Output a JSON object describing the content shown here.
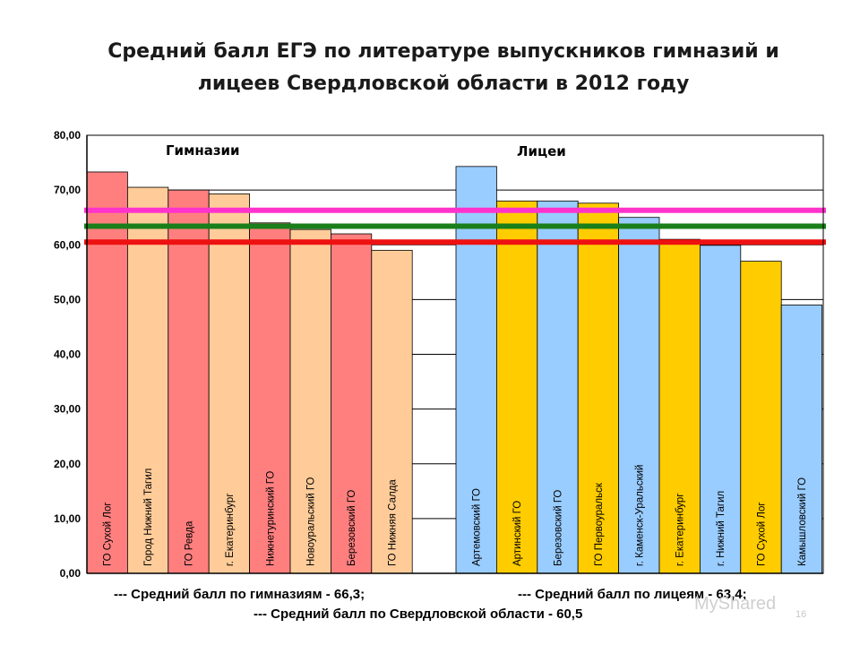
{
  "title": {
    "line1": "Средний балл  ЕГЭ по литературе выпускников гимназий и",
    "line2": "лицеев Свердловской области в 2012 году"
  },
  "chart_data": {
    "type": "bar",
    "title": "Средний балл  ЕГЭ по литературе выпускников гимназий и лицеев Свердловской области в 2012 году",
    "ylim": [
      0,
      80
    ],
    "yticks": [
      "0,00",
      "10,00",
      "20,00",
      "30,00",
      "40,00",
      "50,00",
      "60,00",
      "70,00",
      "80,00"
    ],
    "grid": true,
    "groups": [
      {
        "name": "Гимназии",
        "categories": [
          "ГО Сухой Лог",
          "Город Нижний Тагил",
          "ГО Ревда",
          "г. Екатеринбург",
          "Нижнетуринский  ГО",
          "Новоуральский ГО",
          "Березовский  ГО",
          "ГО Нижняя Салда"
        ],
        "values": [
          73.3,
          70.5,
          70.0,
          69.3,
          64.0,
          62.8,
          62.0,
          59.0
        ],
        "colors": [
          "#ff7f7f",
          "#ffcc99",
          "#ff7f7f",
          "#ffcc99",
          "#ff7f7f",
          "#ffcc99",
          "#ff7f7f",
          "#ffcc99"
        ]
      },
      {
        "name": "Лицеи",
        "categories": [
          "Артемовский  ГО",
          "Артинский  ГО",
          "Березовский  ГО",
          "ГО Первоуральск",
          "г. Каменск-Уральский",
          "г. Екатеринбург",
          "г. Нижний  Тагил",
          "ГО Сухой Лог",
          "Камышловский  ГО"
        ],
        "values": [
          74.3,
          68.0,
          68.0,
          67.6,
          65.0,
          61.0,
          59.9,
          57.0,
          49.0
        ],
        "colors": [
          "#99ccff",
          "#ffcc00",
          "#99ccff",
          "#ffcc00",
          "#99ccff",
          "#ffcc00",
          "#99ccff",
          "#ffcc00",
          "#99ccff"
        ]
      }
    ],
    "reference_lines": [
      {
        "value": 66.3,
        "color": "#ff33cc"
      },
      {
        "value": 63.4,
        "color": "#1a7f1a"
      },
      {
        "value": 60.5,
        "color": "#ee1111"
      }
    ]
  },
  "footer": {
    "gym_avg": "--- Средний балл по гимназиям - 66,3;",
    "lyc_avg": "--- Средний балл по лицеям - 63,4;",
    "region_avg": "--- Средний балл по Свердловской области - 60,5"
  },
  "watermark": "MyShared",
  "page_number": "16"
}
